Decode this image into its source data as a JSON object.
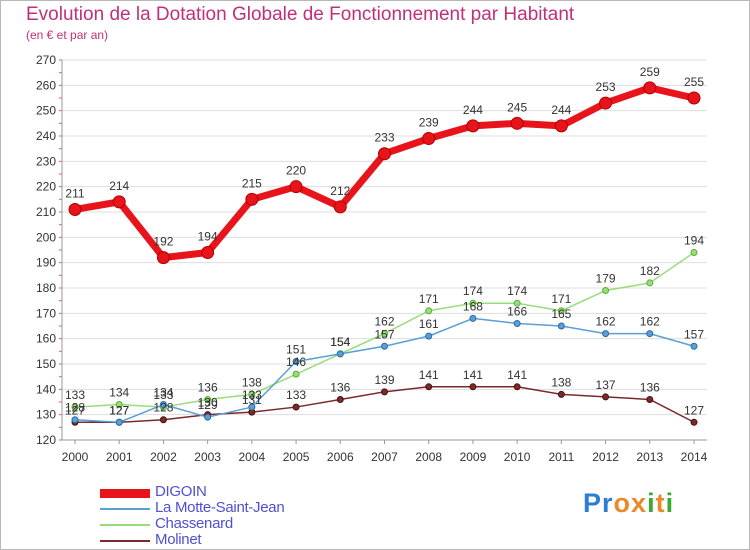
{
  "header": {
    "title": "Evolution de la Dotation Globale de Fonctionnement par Habitant",
    "subtitle": "(en € et par an)"
  },
  "logo": {
    "text": "Proxiti",
    "letters": [
      "P",
      "r",
      "o",
      "x",
      "i",
      "t",
      "i"
    ],
    "colors": [
      "#2a7fd4",
      "#2a7fd4",
      "#e9892a",
      "#e9892a",
      "#3aaa35",
      "#e9892a",
      "#3aaa35"
    ]
  },
  "chart_data": {
    "type": "line",
    "title": "Evolution de la Dotation Globale de Fonctionnement par Habitant",
    "subtitle": "(en € et par an)",
    "xlabel": "",
    "ylabel": "",
    "x": [
      "2000",
      "2001",
      "2002",
      "2003",
      "2004",
      "2005",
      "2006",
      "2007",
      "2008",
      "2009",
      "2010",
      "2011",
      "2012",
      "2013",
      "2014"
    ],
    "ylim": [
      120,
      270
    ],
    "yticks": [
      120,
      130,
      140,
      150,
      160,
      170,
      180,
      190,
      200,
      210,
      220,
      230,
      240,
      250,
      260,
      270
    ],
    "grid": "horizontal",
    "legend": "bottom-left",
    "series": [
      {
        "name": "DIGOIN",
        "color": "#e8141b",
        "values": [
          211,
          214,
          192,
          194,
          215,
          220,
          212,
          233,
          239,
          244,
          245,
          244,
          253,
          259,
          255
        ]
      },
      {
        "name": "La Motte-Saint-Jean",
        "color": "#5b9fd4",
        "values": [
          128,
          127,
          134,
          129,
          133,
          151,
          154,
          157,
          161,
          168,
          166,
          165,
          162,
          162,
          157
        ]
      },
      {
        "name": "Chassenard",
        "color": "#98dd7a",
        "values": [
          133,
          134,
          133,
          136,
          138,
          146,
          154,
          162,
          171,
          174,
          174,
          171,
          179,
          182,
          194
        ]
      },
      {
        "name": "Molinet",
        "color": "#7a2a2a",
        "values": [
          127,
          127,
          128,
          130,
          131,
          133,
          136,
          139,
          141,
          141,
          141,
          138,
          137,
          136,
          127
        ]
      }
    ]
  }
}
